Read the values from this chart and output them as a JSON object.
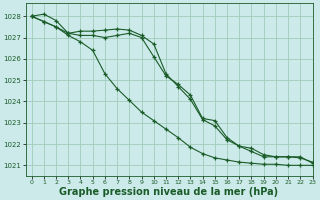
{
  "background_color": "#cdeaea",
  "grid_color": "#a0ccbb",
  "line_color": "#1a5c28",
  "title": "Graphe pression niveau de la mer (hPa)",
  "title_fontsize": 7.0,
  "xlim": [
    -0.5,
    23
  ],
  "ylim": [
    1020.5,
    1028.6
  ],
  "yticks": [
    1021,
    1022,
    1023,
    1024,
    1025,
    1026,
    1027,
    1028
  ],
  "xticks": [
    0,
    1,
    2,
    3,
    4,
    5,
    6,
    7,
    8,
    9,
    10,
    11,
    12,
    13,
    14,
    15,
    16,
    17,
    18,
    19,
    20,
    21,
    22,
    23
  ],
  "series": [
    [
      1028.0,
      1028.1,
      1027.8,
      1027.2,
      1027.1,
      1027.1,
      1027.0,
      1027.1,
      1027.2,
      1027.0,
      1026.1,
      1025.2,
      1024.8,
      1024.3,
      1023.2,
      1023.1,
      1022.3,
      1021.9,
      1021.8,
      1021.5,
      1021.4,
      1021.4,
      1021.4,
      1021.1
    ],
    [
      1028.0,
      1027.75,
      1027.5,
      1027.2,
      1027.3,
      1027.3,
      1027.35,
      1027.4,
      1027.35,
      1027.1,
      1026.7,
      1025.3,
      1024.7,
      1024.1,
      1023.15,
      1022.85,
      1022.2,
      1021.9,
      1021.65,
      1021.4,
      1021.4,
      1021.4,
      1021.35,
      1021.15
    ],
    [
      1028.0,
      1027.75,
      1027.5,
      1027.1,
      1026.8,
      1026.4,
      1025.3,
      1024.6,
      1024.05,
      1023.5,
      1023.1,
      1022.7,
      1022.3,
      1021.85,
      1021.55,
      1021.35,
      1021.25,
      1021.15,
      1021.1,
      1021.05,
      1021.05,
      1021.0,
      1021.0,
      1021.0
    ]
  ]
}
